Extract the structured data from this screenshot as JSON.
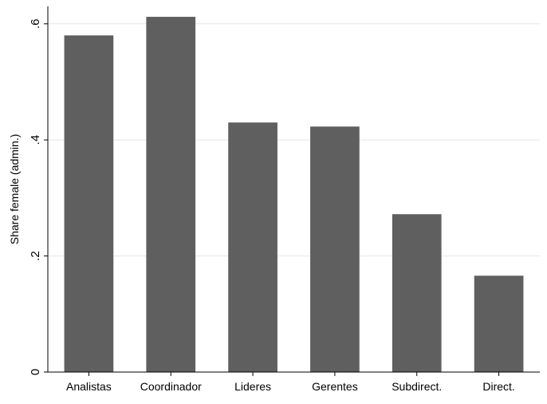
{
  "chart_data": {
    "type": "bar",
    "title": "",
    "xlabel": "",
    "ylabel": "Share female (admin.)",
    "categories": [
      "Analistas",
      "Coordinador",
      "Lideres",
      "Gerentes",
      "Subdirect.",
      "Direct."
    ],
    "values": [
      0.58,
      0.612,
      0.43,
      0.423,
      0.272,
      0.166
    ],
    "ylim": [
      0,
      0.63
    ],
    "yticks": [
      0,
      0.2,
      0.4,
      0.6
    ],
    "ytick_labels": [
      "0",
      ".2",
      ".4",
      ".6"
    ],
    "grid": true,
    "legend": "none",
    "colors": {
      "bar": "#5f5f5f",
      "grid": "#e6e6e6",
      "axis": "#000000"
    }
  }
}
